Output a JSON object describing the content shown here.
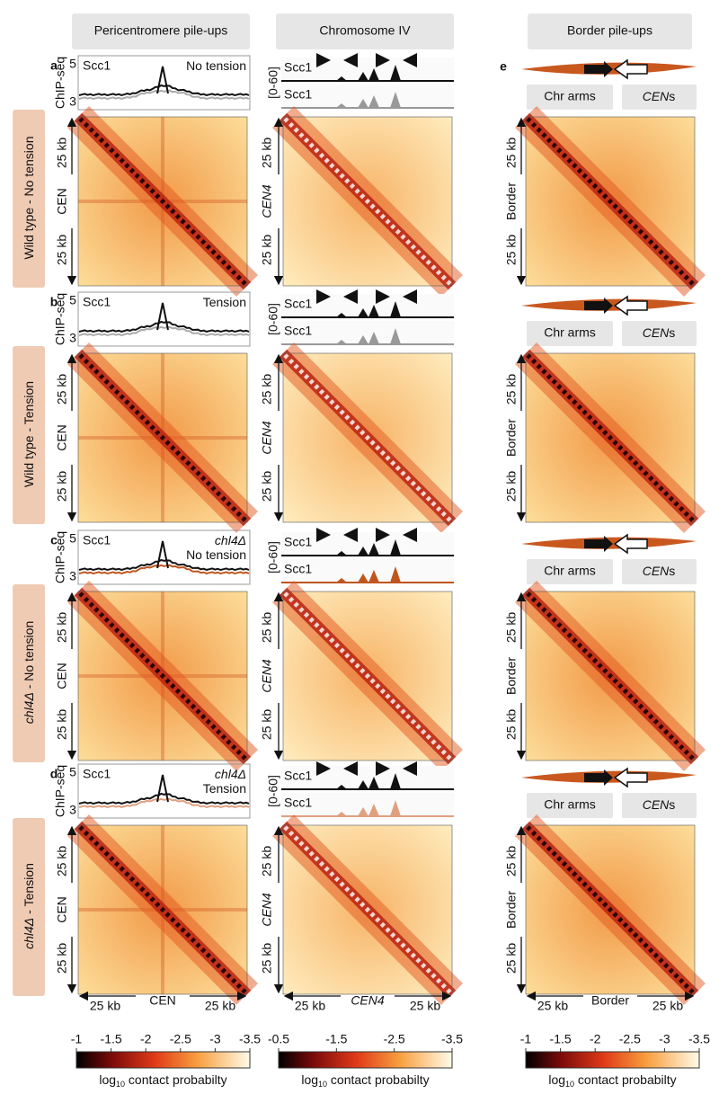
{
  "headers": [
    "Pericentromere pile-ups",
    "Chromosome IV",
    "Border pile-ups"
  ],
  "panel_e": "e",
  "rows": [
    {
      "letter": "a",
      "label": [
        {
          "t": "Wild type - No tension"
        }
      ],
      "chip": {
        "ylabel": "ChIP-seq",
        "ytop": "5",
        "ybot": "3",
        "left": "Scc1",
        "left_color": "#111111",
        "right": [
          [
            {
              "t": "No tension"
            }
          ]
        ],
        "right_color": "#111111",
        "line1": "#111111",
        "line2": "#aaaaaa"
      },
      "left_heat": [
        "25 kb",
        "CEN",
        "25 kb"
      ],
      "middle": {
        "range": "[0-60]",
        "tracks": [
          {
            "name": "Scc1",
            "color": "#111111"
          },
          {
            "name": "Scc1",
            "color": "#999999"
          }
        ],
        "heat": [
          "25 kb",
          "CEN4",
          "25 kb"
        ]
      },
      "right": {
        "arms": "Chr arms",
        "cens": [
          {
            "t": "CEN",
            "i": true
          },
          {
            "t": "s"
          }
        ],
        "heat": [
          "25 kb",
          "Border",
          "25 kb"
        ]
      }
    },
    {
      "letter": "b",
      "label": [
        {
          "t": "Wild type - Tension"
        }
      ],
      "chip": {
        "ylabel": "ChIP-seq",
        "ytop": "5",
        "ybot": "3",
        "left": "Scc1",
        "left_color": "#999999",
        "right": [
          [
            {
              "t": "Tension"
            }
          ]
        ],
        "right_color": "#999999",
        "line1": "#111111",
        "line2": "#aaaaaa"
      },
      "left_heat": [
        "25 kb",
        "CEN",
        "25 kb"
      ],
      "middle": {
        "range": "[0-60]",
        "tracks": [
          {
            "name": "Scc1",
            "color": "#111111"
          },
          {
            "name": "Scc1",
            "color": "#999999"
          }
        ],
        "heat": [
          "25 kb",
          "CEN4",
          "25 kb"
        ]
      },
      "right": {
        "arms": "Chr arms",
        "cens": [
          {
            "t": "CEN",
            "i": true
          },
          {
            "t": "s"
          }
        ],
        "heat": [
          "25 kb",
          "Border",
          "25 kb"
        ]
      }
    },
    {
      "letter": "c",
      "label": [
        {
          "t": "chl4Δ",
          "i": true
        },
        {
          "t": " - No tension"
        }
      ],
      "chip": {
        "ylabel": "ChIP-seq",
        "ytop": "5",
        "ybot": "3",
        "left": "Scc1",
        "left_color": "#c0561e",
        "right": [
          [
            {
              "t": "chl4Δ",
              "i": true
            }
          ],
          [
            {
              "t": "No tension"
            }
          ]
        ],
        "right_color": "#c0561e",
        "line1": "#111111",
        "line2": "#c0561e"
      },
      "left_heat": [
        "25 kb",
        "CEN",
        "25 kb"
      ],
      "middle": {
        "range": "[0-60]",
        "tracks": [
          {
            "name": "Scc1",
            "color": "#111111"
          },
          {
            "name": "Scc1",
            "color": "#c0561e"
          }
        ],
        "heat": [
          "25 kb",
          "CEN4",
          "25 kb"
        ]
      },
      "right": {
        "arms": "Chr arms",
        "cens": [
          {
            "t": "CEN",
            "i": true
          },
          {
            "t": "s"
          }
        ],
        "heat": [
          "25 kb",
          "Border",
          "25 kb"
        ]
      }
    },
    {
      "letter": "d",
      "label": [
        {
          "t": "chl4Δ",
          "i": true
        },
        {
          "t": " - Tension"
        }
      ],
      "chip": {
        "ylabel": "ChIP-seq",
        "ytop": "5",
        "ybot": "3",
        "left": "Scc1",
        "left_color": "#e0a080",
        "right": [
          [
            {
              "t": "chl4Δ",
              "i": true
            }
          ],
          [
            {
              "t": "Tension"
            }
          ]
        ],
        "right_color": "#e0a080",
        "line1": "#111111",
        "line2": "#e0a080"
      },
      "left_heat": [
        "25 kb",
        "CEN",
        "25 kb"
      ],
      "middle": {
        "range": "[0-60]",
        "tracks": [
          {
            "name": "Scc1",
            "color": "#111111"
          },
          {
            "name": "Scc1",
            "color": "#e0a080"
          }
        ],
        "heat": [
          "25 kb",
          "CEN4",
          "25 kb"
        ]
      },
      "right": {
        "arms": "Chr arms",
        "cens": [
          {
            "t": "CEN",
            "i": true
          },
          {
            "t": "s"
          }
        ],
        "heat": [
          "25 kb",
          "Border",
          "25 kb"
        ]
      }
    }
  ],
  "bottom": [
    [
      "25 kb",
      "CEN",
      "25 kb"
    ],
    [
      "25 kb",
      "CEN4",
      "25 kb"
    ],
    [
      "25 kb",
      "Border",
      "25 kb"
    ]
  ],
  "colorbars": [
    {
      "ticks": [
        "-1",
        "-1.5",
        "-2",
        "-2.5",
        "-3",
        "-3.5"
      ],
      "label": [
        {
          "t": "log"
        },
        {
          "t": "10",
          "sub": true
        },
        {
          "t": " contact probabilty"
        }
      ]
    },
    {
      "ticks": [
        "-0.5",
        "-1.5",
        "-2.5",
        "-3.5"
      ],
      "label": [
        {
          "t": "log"
        },
        {
          "t": "10",
          "sub": true
        },
        {
          "t": " contact probabilty"
        }
      ]
    },
    {
      "ticks": [
        "-1",
        "-1.5",
        "-2",
        "-2.5",
        "-3",
        "-3.5"
      ],
      "label": [
        {
          "t": "log"
        },
        {
          "t": "10",
          "sub": true
        },
        {
          "t": " contact probabilty"
        }
      ]
    }
  ]
}
